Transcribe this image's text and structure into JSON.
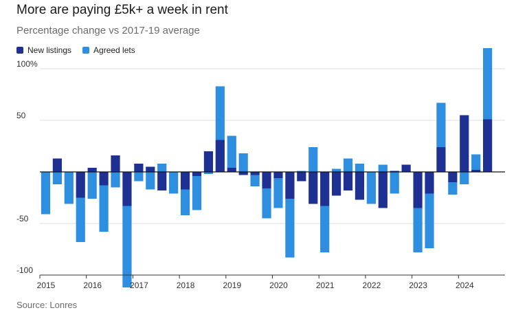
{
  "title": "More are paying £5k+ a week in rent",
  "subtitle": "Percentage change vs 2017-19 average",
  "source": "Source: Lonres",
  "legend": [
    {
      "label": "New listings",
      "color": "#1e3192"
    },
    {
      "label": "Agreed lets",
      "color": "#2e8fe0"
    }
  ],
  "chart_data": {
    "type": "bar",
    "stacked": true,
    "title": "More are paying £5k+ a week in rent",
    "subtitle": "Percentage change vs 2017-19 average",
    "ylim": [
      -100,
      100
    ],
    "yticks": [
      100,
      50,
      0,
      -50,
      -100
    ],
    "ytick_labels": [
      "100%",
      "50",
      "",
      "-50",
      "-100"
    ],
    "grid": true,
    "legend_position": "top-left",
    "x_tick_labels": [
      "2015",
      "2016",
      "2017",
      "2018",
      "2019",
      "2020",
      "2021",
      "2022",
      "2023",
      "2024"
    ],
    "categories": [
      "2015 Q1",
      "2015 Q2",
      "2015 Q3",
      "2015 Q4",
      "2016 Q1",
      "2016 Q2",
      "2016 Q3",
      "2016 Q4",
      "2017 Q1",
      "2017 Q2",
      "2017 Q3",
      "2017 Q4",
      "2018 Q1",
      "2018 Q2",
      "2018 Q3",
      "2018 Q4",
      "2019 Q1",
      "2019 Q2",
      "2019 Q3",
      "2019 Q4",
      "2020 Q1",
      "2020 Q2",
      "2020 Q3",
      "2020 Q4",
      "2021 Q1",
      "2021 Q2",
      "2021 Q3",
      "2021 Q4",
      "2022 Q1",
      "2022 Q2",
      "2022 Q3",
      "2022 Q4",
      "2023 Q1",
      "2023 Q2",
      "2023 Q3",
      "2023 Q4",
      "2024 Q1",
      "2024 Q2",
      "2024 Q3",
      "2024 Q4"
    ],
    "series": [
      {
        "name": "New listings",
        "color": "#1e3192",
        "values": [
          0,
          13,
          0,
          -25,
          4,
          -13,
          16,
          -33,
          8,
          5,
          -18,
          0,
          -17,
          -4,
          20,
          31,
          4,
          -3,
          -3,
          -16,
          -6,
          -26,
          -9,
          -31,
          -33,
          -23,
          -18,
          -27,
          0,
          -35,
          1,
          7,
          -35,
          -21,
          24,
          -10,
          55,
          2,
          51,
          0
        ]
      },
      {
        "name": "Agreed lets",
        "color": "#2e8fe0",
        "values": [
          -41,
          -12,
          -31,
          -43,
          -26,
          -45,
          -15,
          -79,
          -9,
          -17,
          8,
          -21,
          -25,
          -33,
          -2,
          52,
          31,
          18,
          -11,
          -29,
          -29,
          -57,
          1,
          24,
          -45,
          3,
          13,
          8,
          -31,
          7,
          -21,
          0,
          -43,
          -53,
          43,
          -12,
          -12,
          15,
          69,
          0
        ]
      }
    ]
  }
}
